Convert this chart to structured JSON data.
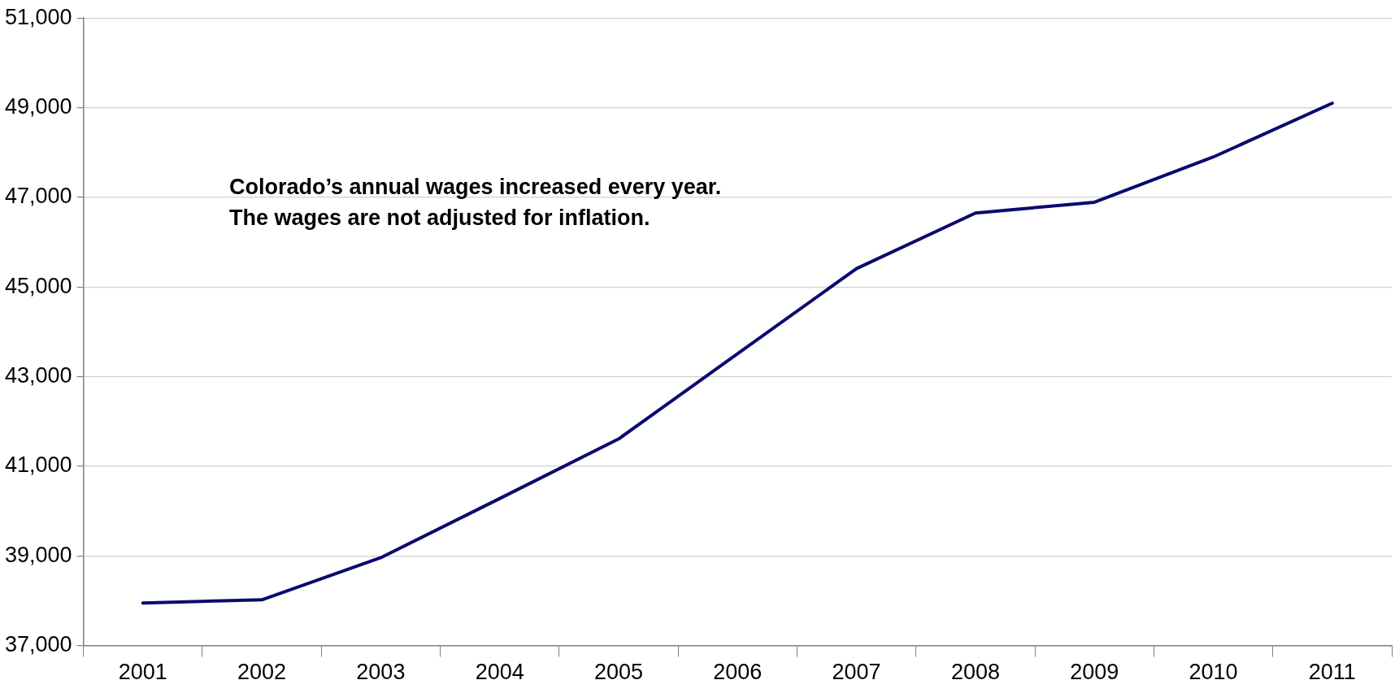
{
  "chart_data": {
    "type": "line",
    "categories": [
      "2001",
      "2002",
      "2003",
      "2004",
      "2005",
      "2006",
      "2007",
      "2008",
      "2009",
      "2010",
      "2011"
    ],
    "series": [
      {
        "color": "#0a0a6e",
        "values": [
          37950,
          38020,
          38960,
          40280,
          41610,
          43510,
          45410,
          46650,
          46890,
          47900,
          49100
        ]
      }
    ],
    "ylim": [
      37000,
      51000
    ],
    "yticks": [
      {
        "value": 37000,
        "label": "37,000"
      },
      {
        "value": 39000,
        "label": "39,000"
      },
      {
        "value": 41000,
        "label": "41,000"
      },
      {
        "value": 43000,
        "label": "43,000"
      },
      {
        "value": 45000,
        "label": "45,000"
      },
      {
        "value": 47000,
        "label": "47,000"
      },
      {
        "value": 49000,
        "label": "49,000"
      },
      {
        "value": 51000,
        "label": "51,000"
      }
    ],
    "grid": "y",
    "legend": false,
    "marker": "none",
    "line_style": "solid",
    "annotations": [
      "Colorado’s annual wages increased every year.\nThe wages are not adjusted for inflation."
    ]
  }
}
